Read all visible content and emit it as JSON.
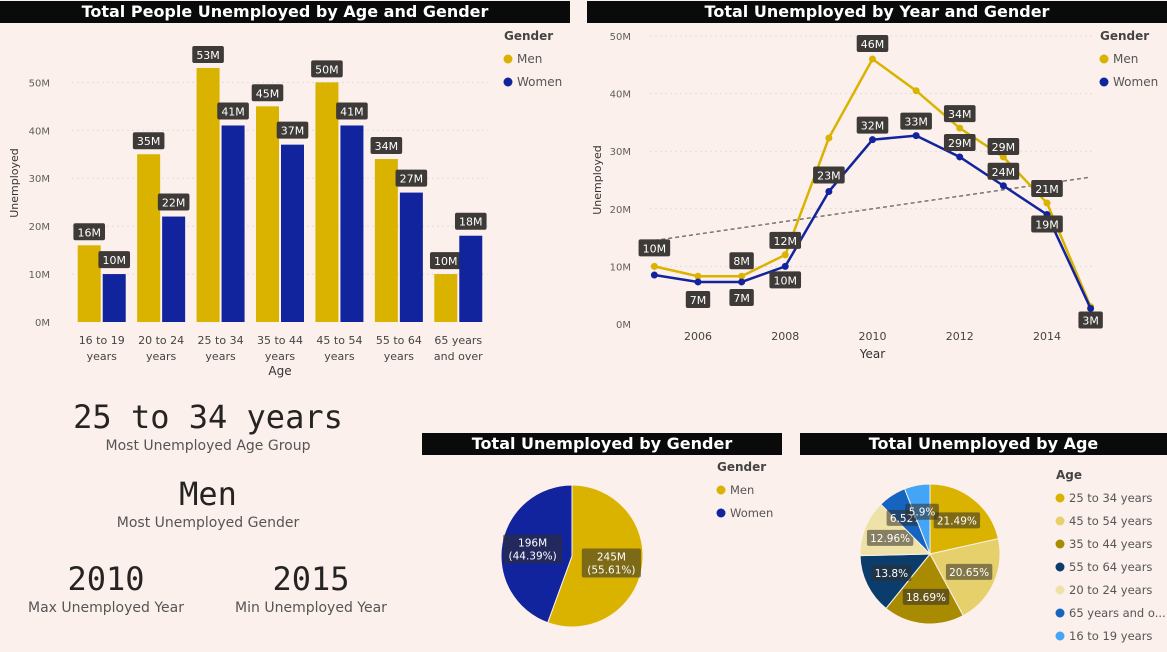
{
  "colors": {
    "men": "#d9b300",
    "women": "#12239e",
    "label_bg": "#3d3a37",
    "axis_text": "#605e5c"
  },
  "chart_data": [
    {
      "id": "age_gender_bar",
      "type": "bar",
      "title": "Total People Unemployed by Age and Gender",
      "xlabel": "Age",
      "ylabel": "Unemployed",
      "categories": [
        [
          "16 to 19",
          "years"
        ],
        [
          "20 to 24",
          "years"
        ],
        [
          "25 to 34",
          "years"
        ],
        [
          "35 to 44",
          "years"
        ],
        [
          "45 to 54",
          "years"
        ],
        [
          "55 to 64",
          "years"
        ],
        [
          "65 years",
          "and over"
        ]
      ],
      "series": [
        {
          "name": "Men",
          "values": [
            16,
            35,
            53,
            45,
            50,
            34,
            10
          ],
          "labels": [
            "16M",
            "35M",
            "53M",
            "45M",
            "50M",
            "34M",
            "10M"
          ]
        },
        {
          "name": "Women",
          "values": [
            10,
            22,
            41,
            37,
            41,
            27,
            18
          ],
          "labels": [
            "10M",
            "22M",
            "41M",
            "37M",
            "41M",
            "27M",
            "18M"
          ]
        }
      ],
      "ylim": [
        0,
        58
      ],
      "yticks": [
        0,
        10,
        20,
        30,
        40,
        50
      ],
      "ytick_labels": [
        "0M",
        "10M",
        "20M",
        "30M",
        "40M",
        "50M"
      ],
      "legend": {
        "title": "Gender",
        "position": "top-right"
      },
      "grid": true
    },
    {
      "id": "year_gender_line",
      "type": "line",
      "title": "Total Unemployed by Year and Gender",
      "xlabel": "Year",
      "ylabel": "Unemployed",
      "x": [
        2005,
        2006,
        2007,
        2008,
        2009,
        2010,
        2011,
        2012,
        2013,
        2014,
        2015
      ],
      "series": [
        {
          "name": "Men",
          "values": [
            10,
            8.3,
            8.3,
            12,
            32.3,
            46,
            40.5,
            34,
            29,
            21,
            3
          ],
          "labels": [
            "10M",
            "",
            "8M",
            "12M",
            "",
            "46M",
            "",
            "34M",
            "29M",
            "21M",
            ""
          ]
        },
        {
          "name": "Women",
          "values": [
            8.5,
            7.3,
            7.3,
            10,
            23,
            32,
            32.7,
            29,
            24,
            19,
            2.7
          ],
          "labels": [
            "",
            "7M",
            "7M",
            "10M",
            "23M",
            "32M",
            "33M",
            "29M",
            "24M",
            "19M",
            "3M"
          ]
        }
      ],
      "trend": {
        "from": [
          2005,
          14.5
        ],
        "to": [
          2015,
          25.5
        ]
      },
      "ylim": [
        0,
        50
      ],
      "yticks": [
        0,
        10,
        20,
        30,
        40,
        50
      ],
      "ytick_labels": [
        "0M",
        "10M",
        "20M",
        "30M",
        "40M",
        "50M"
      ],
      "xticks": [
        2006,
        2008,
        2010,
        2012,
        2014
      ],
      "legend": {
        "title": "Gender",
        "position": "top-right"
      },
      "grid": true
    },
    {
      "id": "gender_pie",
      "type": "pie",
      "title": "Total Unemployed by Gender",
      "slices": [
        {
          "name": "Men",
          "value": 245,
          "label": [
            "245M",
            "(55.61%)"
          ],
          "color": "#d9b300"
        },
        {
          "name": "Women",
          "value": 196,
          "label": [
            "196M",
            "(44.39%)"
          ],
          "color": "#12239e"
        }
      ],
      "legend": {
        "title": "Gender",
        "position": "right"
      }
    },
    {
      "id": "age_pie",
      "type": "pie",
      "title": "Total Unemployed by Age",
      "slices": [
        {
          "name": "25 to 34 years",
          "value": 21.49,
          "label": "21.49%",
          "color": "#d9b300"
        },
        {
          "name": "45 to 54 years",
          "value": 20.65,
          "label": "20.65%",
          "color": "#e6d06c"
        },
        {
          "name": "35 to 44 years",
          "value": 18.69,
          "label": "18.69%",
          "color": "#a88b00"
        },
        {
          "name": "55 to 64 years",
          "value": 13.8,
          "label": "13.8%",
          "color": "#0a3d6b"
        },
        {
          "name": "20 to 24 years",
          "value": 12.96,
          "label": "12.96%",
          "color": "#efe2a8"
        },
        {
          "name": "65 years and o...",
          "value": 6.52,
          "label": "6.52%",
          "color": "#1565c0"
        },
        {
          "name": "16 to 19 years",
          "value": 5.9,
          "label": "5.9%",
          "color": "#42a5f5"
        }
      ],
      "legend": {
        "title": "Age",
        "position": "right"
      }
    }
  ],
  "kpis": {
    "age_group": {
      "value": "25 to 34 years",
      "label": "Most Unemployed Age Group"
    },
    "gender": {
      "value": "Men",
      "label": "Most Unemployed Gender"
    },
    "max_year": {
      "value": "2010",
      "label": "Max Unemployed Year"
    },
    "min_year": {
      "value": "2015",
      "label": "Min Unemployed Year"
    }
  }
}
